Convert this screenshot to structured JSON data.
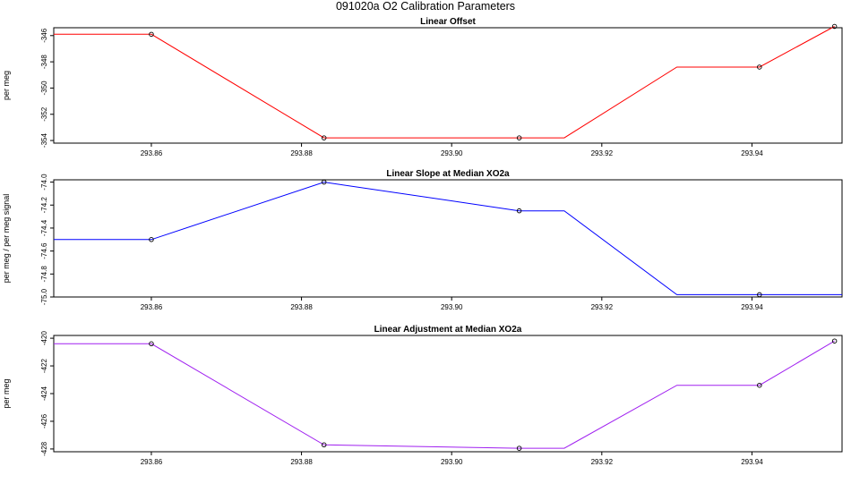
{
  "title": "091020a   O2 Calibration Parameters",
  "colors": {
    "panel1": "#ff0000",
    "panel2": "#0000ff",
    "panel3": "#a020f0"
  },
  "chart_data": [
    {
      "type": "line",
      "title": "Linear Offset",
      "ylabel": "per meg",
      "xlim": [
        293.847,
        293.952
      ],
      "ylim": [
        -354.2,
        -345.4
      ],
      "xticks": [
        "293.86",
        "293.88",
        "293.90",
        "293.92",
        "293.94"
      ],
      "yticks": [
        "-346",
        "-348",
        "-350",
        "-352",
        "-354"
      ],
      "grid": false,
      "series": [
        {
          "color": "#ff0000",
          "line": [
            [
              293.847,
              -345.9
            ],
            [
              293.86,
              -345.9
            ],
            [
              293.883,
              -353.8
            ],
            [
              293.915,
              -353.8
            ],
            [
              293.93,
              -348.4
            ],
            [
              293.941,
              -348.4
            ],
            [
              293.951,
              -345.3
            ]
          ],
          "points": [
            [
              293.86,
              -345.9
            ],
            [
              293.883,
              -353.8
            ],
            [
              293.909,
              -353.8
            ],
            [
              293.941,
              -348.4
            ],
            [
              293.951,
              -345.3
            ]
          ]
        }
      ]
    },
    {
      "type": "line",
      "title": "Linear Slope at Median XO2a",
      "ylabel": "per meg / per meg signal",
      "xlim": [
        293.847,
        293.952
      ],
      "ylim": [
        -75.0,
        -73.98
      ],
      "xticks": [
        "293.86",
        "293.88",
        "293.90",
        "293.92",
        "293.94"
      ],
      "yticks": [
        "-74.0",
        "-74.2",
        "-74.4",
        "-74.6",
        "-74.8",
        "-75.0"
      ],
      "grid": false,
      "series": [
        {
          "color": "#0000ff",
          "line": [
            [
              293.847,
              -74.5
            ],
            [
              293.86,
              -74.5
            ],
            [
              293.883,
              -74.0
            ],
            [
              293.909,
              -74.25
            ],
            [
              293.915,
              -74.25
            ],
            [
              293.93,
              -74.98
            ],
            [
              293.941,
              -74.98
            ],
            [
              293.952,
              -74.98
            ]
          ],
          "points": [
            [
              293.86,
              -74.5
            ],
            [
              293.883,
              -74.0
            ],
            [
              293.909,
              -74.25
            ],
            [
              293.941,
              -74.98
            ]
          ]
        }
      ]
    },
    {
      "type": "line",
      "title": "Linear Adjustment at Median XO2a",
      "ylabel": "per meg",
      "xlim": [
        293.847,
        293.952
      ],
      "ylim": [
        -428.2,
        -419.8
      ],
      "xticks": [
        "293.86",
        "293.88",
        "293.90",
        "293.92",
        "293.94"
      ],
      "yticks": [
        "-420",
        "-422",
        "-424",
        "-426",
        "-428"
      ],
      "grid": false,
      "series": [
        {
          "color": "#a020f0",
          "line": [
            [
              293.847,
              -420.4
            ],
            [
              293.86,
              -420.4
            ],
            [
              293.883,
              -427.7
            ],
            [
              293.909,
              -427.95
            ],
            [
              293.915,
              -427.95
            ],
            [
              293.93,
              -423.4
            ],
            [
              293.941,
              -423.4
            ],
            [
              293.951,
              -420.2
            ]
          ],
          "points": [
            [
              293.86,
              -420.4
            ],
            [
              293.883,
              -427.7
            ],
            [
              293.909,
              -427.95
            ],
            [
              293.941,
              -423.4
            ],
            [
              293.951,
              -420.2
            ]
          ]
        }
      ]
    }
  ]
}
